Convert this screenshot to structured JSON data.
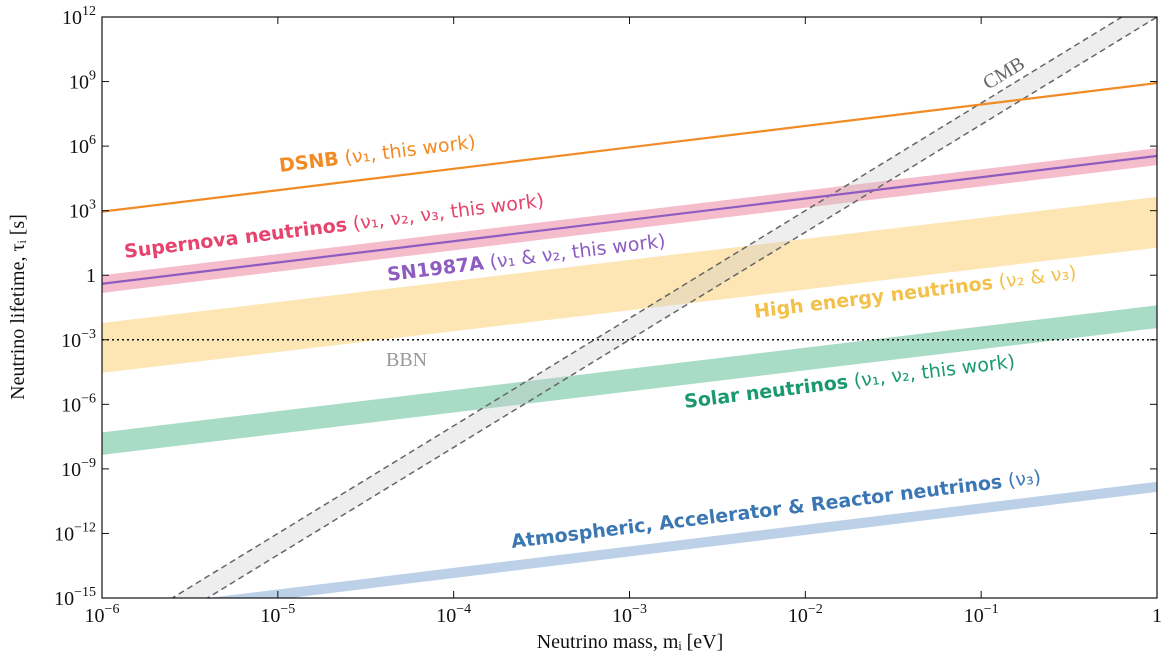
{
  "chart_data": {
    "type": "line",
    "xlabel": "Neutrino mass, mᵢ [eV]",
    "ylabel": "Neutrino lifetime, τᵢ [s]",
    "xscale": "log",
    "yscale": "log",
    "xlim": [
      1e-06,
      1
    ],
    "ylim": [
      1e-15,
      1000000000000.0
    ],
    "xticks": [
      {
        "value": 1e-06,
        "label": "10−6"
      },
      {
        "value": 1e-05,
        "label": "10−5"
      },
      {
        "value": 0.0001,
        "label": "10−4"
      },
      {
        "value": 0.001,
        "label": "10−3"
      },
      {
        "value": 0.01,
        "label": "10−2"
      },
      {
        "value": 0.1,
        "label": "10−1"
      },
      1
    ],
    "yticks": [
      {
        "value": 1e-15,
        "label": "10−15"
      },
      {
        "value": 1e-12,
        "label": "10−12"
      },
      {
        "value": 1e-09,
        "label": "10−9"
      },
      {
        "value": 1e-06,
        "label": "10−6"
      },
      {
        "value": 0.001,
        "label": "10−3"
      },
      1,
      {
        "value": 1000.0,
        "label": "103"
      },
      {
        "value": 1000000.0,
        "label": "106"
      },
      {
        "value": 1000000000.0,
        "label": "109"
      },
      {
        "value": 1000000000000.0,
        "label": "1012"
      }
    ],
    "x": [
      1e-06,
      1
    ],
    "series": [
      {
        "name": "High energy neutrinos",
        "note": "(ν₂ & ν₃)",
        "kind": "band",
        "color": "#fde6b3",
        "label_color": "#f3c14a",
        "values": [
          0.006,
          4400.0
        ],
        "lower": [
          2.9e-05,
          19
        ]
      },
      {
        "name": "Solar neutrinos",
        "note": "(ν₁, ν₂, this work)",
        "kind": "band",
        "color": "#a9dcc7",
        "label_color": "#1a9a6c",
        "values": [
          5e-08,
          0.04
        ],
        "lower": [
          4.5e-09,
          0.0035
        ]
      },
      {
        "name": "Atmospheric, Accelerator & Reactor neutrinos",
        "note": "(ν₃)",
        "kind": "band",
        "color": "#bcd1e7",
        "label_color": "#3b77b3",
        "values": [
          2.5e-16,
          2.5e-10
        ],
        "lower": [
          8.5e-17,
          8.5e-11
        ]
      },
      {
        "name": "Supernova neutrinos",
        "note": "(ν₁, ν₂, ν₃, this work)",
        "kind": "band",
        "color": "#f5bccb",
        "label_color": "#e6436d",
        "values": [
          1,
          800000.0
        ],
        "lower": [
          0.15,
          130000.0
        ]
      },
      {
        "name": "CMB",
        "kind": "dashed-band",
        "color": "#666666",
        "values": [
          1e-17,
          10000000000000.0
        ],
        "lower": [
          1e-18,
          1000000000000.0
        ]
      },
      {
        "name": "SN1987A",
        "note": "(ν₁ & ν₂, this work)",
        "kind": "line",
        "color": "#8e5cc0",
        "values": [
          0.4,
          350000.0
        ]
      },
      {
        "name": "DSNB",
        "note": "(ν₁, this work)",
        "kind": "line",
        "color": "#f28b25",
        "values": [
          900,
          850000000.0
        ]
      },
      {
        "name": "BBN",
        "kind": "dotted",
        "color": "#111111",
        "label_color": "#999999",
        "values": [
          0.001,
          0.001
        ]
      }
    ]
  }
}
